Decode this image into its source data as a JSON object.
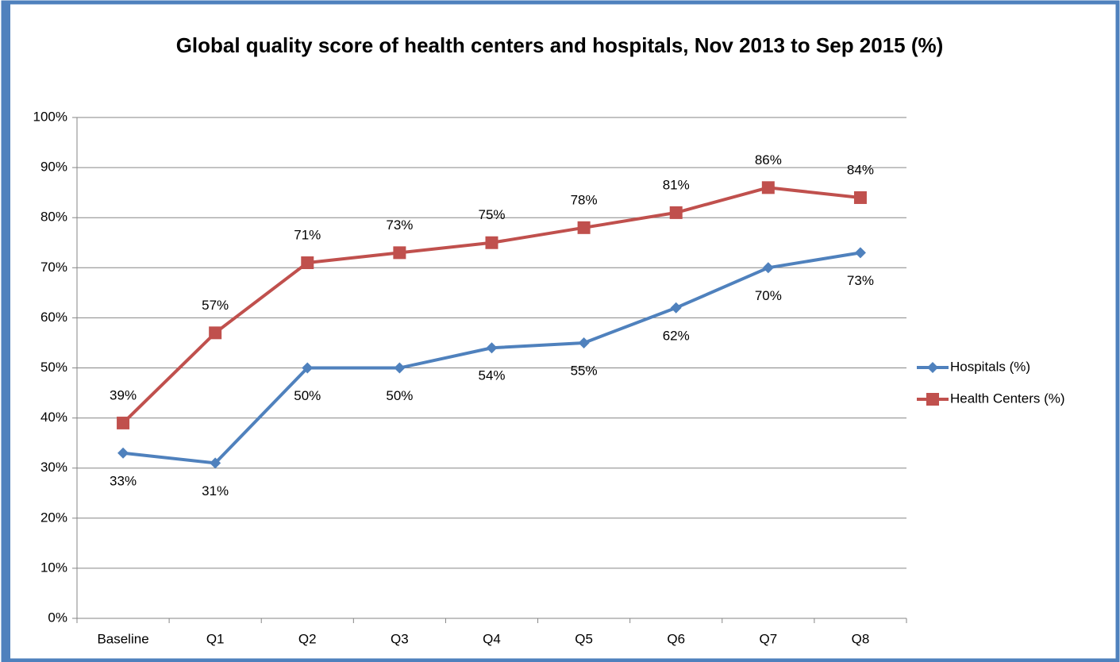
{
  "chart_data": {
    "type": "line",
    "title": "Global quality score of health centers and hospitals, Nov 2013 to Sep 2015 (%)",
    "categories": [
      "Baseline",
      "Q1",
      "Q2",
      "Q3",
      "Q4",
      "Q5",
      "Q6",
      "Q7",
      "Q8"
    ],
    "series": [
      {
        "name": "Hospitals (%)",
        "color": "#4f81bd",
        "marker": "diamond",
        "values": [
          33,
          31,
          50,
          50,
          54,
          55,
          62,
          70,
          73
        ],
        "value_labels": [
          "33%",
          "31%",
          "50%",
          "50%",
          "54%",
          "55%",
          "62%",
          "70%",
          "73%"
        ]
      },
      {
        "name": "Health Centers (%)",
        "color": "#c0504d",
        "marker": "square",
        "values": [
          39,
          57,
          71,
          73,
          75,
          78,
          81,
          86,
          84
        ],
        "value_labels": [
          "39%",
          "57%",
          "71%",
          "73%",
          "75%",
          "78%",
          "81%",
          "86%",
          "84%"
        ]
      }
    ],
    "ylim": [
      0,
      100
    ],
    "yticks": [
      {
        "value": 0,
        "label": "0%"
      },
      {
        "value": 10,
        "label": "10%"
      },
      {
        "value": 20,
        "label": "20%"
      },
      {
        "value": 30,
        "label": "30%"
      },
      {
        "value": 40,
        "label": "40%"
      },
      {
        "value": 50,
        "label": "50%"
      },
      {
        "value": 60,
        "label": "60%"
      },
      {
        "value": 70,
        "label": "70%"
      },
      {
        "value": 80,
        "label": "80%"
      },
      {
        "value": 90,
        "label": "90%"
      },
      {
        "value": 100,
        "label": "100%"
      }
    ],
    "grid": true,
    "legend": "right"
  }
}
